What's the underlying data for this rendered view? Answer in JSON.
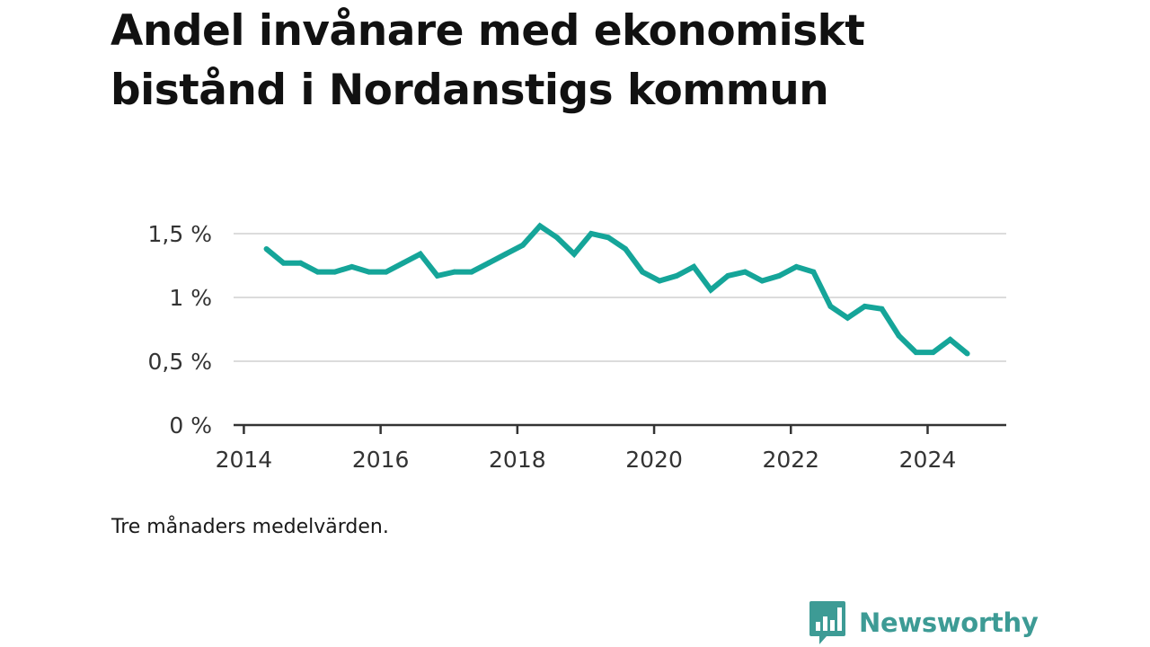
{
  "title": "Andel invånare med ekonomiskt bistånd i Nordanstigs kommun",
  "note": "Tre månaders medelvärden.",
  "brand": {
    "name": "Newsworthy",
    "color": "#3d9b95",
    "logo_icon": "bar-chart-speech-bubble-icon"
  },
  "chart_data": {
    "type": "line",
    "title": "Andel invånare med ekonomiskt bistånd i Nordanstigs kommun",
    "xlabel": "",
    "ylabel": "",
    "series_color": "#15a599",
    "grid": true,
    "grid_axis": "y",
    "xlim": [
      2013.85,
      2025.15
    ],
    "ylim": [
      0,
      1.5
    ],
    "x_ticks": [
      {
        "value": 2014,
        "label": "2014"
      },
      {
        "value": 2016,
        "label": "2016"
      },
      {
        "value": 2018,
        "label": "2018"
      },
      {
        "value": 2020,
        "label": "2020"
      },
      {
        "value": 2022,
        "label": "2022"
      },
      {
        "value": 2024,
        "label": "2024"
      }
    ],
    "y_ticks": [
      {
        "value": 0,
        "label": "0 %"
      },
      {
        "value": 0.5,
        "label": "0,5 %"
      },
      {
        "value": 1,
        "label": "1 %"
      },
      {
        "value": 1.5,
        "label": "1,5 %"
      }
    ],
    "x": [
      2014.33,
      2014.58,
      2014.83,
      2015.08,
      2015.33,
      2015.58,
      2015.83,
      2016.08,
      2016.33,
      2016.58,
      2016.83,
      2017.08,
      2017.33,
      2017.58,
      2017.83,
      2018.08,
      2018.33,
      2018.58,
      2018.83,
      2019.08,
      2019.33,
      2019.58,
      2019.83,
      2020.08,
      2020.33,
      2020.58,
      2020.83,
      2021.08,
      2021.33,
      2021.58,
      2021.83,
      2022.08,
      2022.33,
      2022.58,
      2022.83,
      2023.08,
      2023.33,
      2023.58,
      2023.83,
      2024.08,
      2024.33,
      2024.58
    ],
    "y": [
      1.38,
      1.27,
      1.27,
      1.2,
      1.2,
      1.24,
      1.2,
      1.2,
      1.27,
      1.34,
      1.17,
      1.2,
      1.2,
      1.27,
      1.34,
      1.41,
      1.56,
      1.47,
      1.34,
      1.5,
      1.47,
      1.38,
      1.2,
      1.13,
      1.17,
      1.24,
      1.06,
      1.17,
      1.2,
      1.13,
      1.17,
      1.24,
      1.2,
      0.93,
      0.84,
      0.93,
      0.91,
      0.7,
      0.57,
      0.57,
      0.67,
      0.56
    ]
  }
}
